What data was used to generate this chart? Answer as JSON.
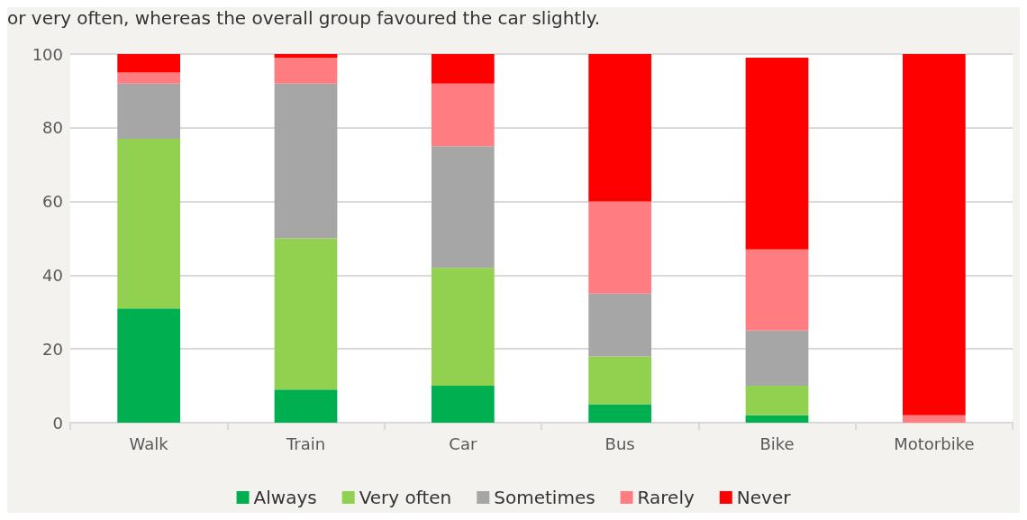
{
  "chart_data": {
    "type": "bar",
    "stacked": true,
    "categories": [
      "Walk",
      "Train",
      "Car",
      "Bus",
      "Bike",
      "Motorbike"
    ],
    "series": [
      {
        "name": "Always",
        "color": "#00b050",
        "values": [
          31,
          9,
          10,
          5,
          2,
          0
        ]
      },
      {
        "name": "Very often",
        "color": "#92d050",
        "values": [
          46,
          41,
          32,
          13,
          8,
          0
        ]
      },
      {
        "name": "Sometimes",
        "color": "#a6a6a6",
        "values": [
          15,
          42,
          33,
          17,
          15,
          0
        ]
      },
      {
        "name": "Rarely",
        "color": "#ff7c80",
        "values": [
          3,
          7,
          17,
          25,
          22,
          2
        ]
      },
      {
        "name": "Never",
        "color": "#ff0000",
        "values": [
          5,
          1,
          8,
          40,
          52,
          98
        ]
      }
    ],
    "ylim": [
      0,
      100
    ],
    "yticks": [
      0,
      20,
      40,
      60,
      80,
      100
    ],
    "grid": "y",
    "legend": "bottom",
    "annotations": [
      "or very often, whereas the overall group favoured the car slightly."
    ]
  }
}
